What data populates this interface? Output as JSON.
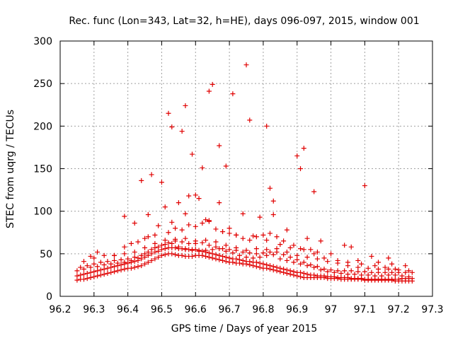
{
  "chart_data": {
    "type": "scatter",
    "title": "Rec. func (Lon=343, Lat=32, h=HE), days 096-097, 2015, window 001",
    "xlabel": "GPS time / Days of year 2015",
    "ylabel": "STEC from uqrg / TECUs",
    "xlim": [
      96.2,
      97.3
    ],
    "ylim": [
      0,
      300
    ],
    "xticks": [
      96.2,
      96.3,
      96.4,
      96.5,
      96.6,
      96.7,
      96.8,
      96.9,
      97,
      97.1,
      97.2,
      97.3
    ],
    "xtick_labels": [
      "96.2",
      "96.3",
      "96.4",
      "96.5",
      "96.6",
      "96.7",
      "96.8",
      "96.9",
      "97",
      "97.1",
      "97.2",
      "97.3"
    ],
    "yticks": [
      0,
      50,
      100,
      150,
      200,
      250,
      300
    ],
    "ytick_labels": [
      "0",
      "50",
      "100",
      "150",
      "200",
      "250",
      "300"
    ],
    "grid": true,
    "marker": "+",
    "color": "#e00000",
    "series": [
      {
        "name": "STEC",
        "x": [
          96.25,
          96.26,
          96.27,
          96.28,
          96.29,
          96.3,
          96.31,
          96.32,
          96.33,
          96.34,
          96.35,
          96.36,
          96.37,
          96.38,
          96.39,
          96.4,
          96.41,
          96.42,
          96.43,
          96.44,
          96.45,
          96.46,
          96.47,
          96.48,
          96.49,
          96.5,
          96.51,
          96.52,
          96.53,
          96.54,
          96.55,
          96.56,
          96.57,
          96.58,
          96.59,
          96.6,
          96.61,
          96.62,
          96.63,
          96.64,
          96.65,
          96.66,
          96.67,
          96.68,
          96.69,
          96.7,
          96.71,
          96.72,
          96.73,
          96.74,
          96.75,
          96.76,
          96.77,
          96.78,
          96.79,
          96.8,
          96.81,
          96.82,
          96.83,
          96.84,
          96.85,
          96.86,
          96.87,
          96.88,
          96.89,
          96.9,
          96.91,
          96.92,
          96.93,
          96.94,
          96.95,
          96.96,
          96.97,
          96.98,
          96.99,
          97.0,
          97.01,
          97.02,
          97.03,
          97.04,
          97.05,
          97.06,
          97.07,
          97.08,
          97.09,
          97.1,
          97.11,
          97.12,
          97.13,
          97.14,
          97.15,
          97.16,
          97.17,
          97.18,
          97.19,
          97.2,
          97.21,
          97.22,
          97.23,
          97.24,
          96.25,
          96.26,
          96.27,
          96.28,
          96.29,
          96.3,
          96.31,
          96.32,
          96.33,
          96.34,
          96.35,
          96.36,
          96.37,
          96.38,
          96.39,
          96.4,
          96.41,
          96.42,
          96.43,
          96.44,
          96.45,
          96.46,
          96.47,
          96.48,
          96.49,
          96.5,
          96.51,
          96.52,
          96.53,
          96.54,
          96.55,
          96.56,
          96.57,
          96.58,
          96.59,
          96.6,
          96.61,
          96.62,
          96.63,
          96.64,
          96.65,
          96.66,
          96.67,
          96.68,
          96.69,
          96.7,
          96.71,
          96.72,
          96.73,
          96.74,
          96.75,
          96.76,
          96.77,
          96.78,
          96.79,
          96.8,
          96.81,
          96.82,
          96.83,
          96.84,
          96.85,
          96.86,
          96.87,
          96.88,
          96.89,
          96.9,
          96.91,
          96.92,
          96.93,
          96.94,
          96.95,
          96.96,
          96.97,
          96.98,
          96.99,
          97.0,
          97.01,
          97.02,
          97.03,
          97.04,
          97.05,
          97.06,
          97.07,
          97.08,
          97.09,
          97.1,
          97.11,
          97.12,
          97.13,
          97.14,
          97.15,
          97.16,
          97.17,
          97.18,
          97.19,
          97.2,
          97.21,
          97.22,
          97.23,
          97.24,
          96.25,
          96.27,
          96.29,
          96.31,
          96.33,
          96.35,
          96.37,
          96.39,
          96.41,
          96.43,
          96.45,
          96.47,
          96.49,
          96.51,
          96.53,
          96.55,
          96.57,
          96.59,
          96.61,
          96.63,
          96.65,
          96.67,
          96.69,
          96.71,
          96.73,
          96.75,
          96.77,
          96.79,
          96.81,
          96.83,
          96.85,
          96.87,
          96.89,
          96.91,
          96.93,
          96.95,
          96.97,
          96.99,
          97.01,
          97.03,
          97.05,
          97.07,
          97.09,
          97.11,
          97.13,
          97.15,
          97.17,
          97.19,
          97.21,
          97.23,
          96.26,
          96.28,
          96.3,
          96.32,
          96.34,
          96.36,
          96.38,
          96.4,
          96.42,
          96.44,
          96.46,
          96.48,
          96.5,
          96.52,
          96.54,
          96.56,
          96.58,
          96.6,
          96.62,
          96.64,
          96.66,
          96.68,
          96.7,
          96.72,
          96.74,
          96.76,
          96.78,
          96.8,
          96.82,
          96.84,
          96.86,
          96.88,
          96.9,
          96.92,
          96.94,
          96.96,
          96.98,
          97.0,
          97.02,
          97.04,
          97.06,
          97.08,
          97.1,
          97.12,
          97.14,
          97.16,
          97.18,
          97.2,
          97.22,
          97.24,
          96.27,
          96.3,
          96.33,
          96.36,
          96.39,
          96.42,
          96.45,
          96.48,
          96.51,
          96.54,
          96.57,
          96.6,
          96.63,
          96.66,
          96.69,
          96.72,
          96.75,
          96.78,
          96.81,
          96.84,
          96.87,
          96.9,
          96.93,
          96.96,
          96.99,
          97.02,
          97.05,
          97.08,
          97.11,
          97.14,
          97.17,
          97.2,
          97.23,
          96.29,
          96.31,
          96.36,
          96.39,
          96.41,
          96.43,
          96.45,
          96.46,
          96.48,
          96.52,
          96.54,
          96.56,
          96.58,
          96.6,
          96.62,
          96.64,
          96.66,
          96.68,
          96.7,
          96.72,
          96.74,
          96.76,
          96.78,
          96.8,
          96.82,
          96.84,
          96.86,
          96.89,
          96.92,
          96.95,
          96.98,
          97.02,
          97.05,
          97.09,
          97.13,
          97.16,
          97.19,
          96.39,
          96.44,
          96.47,
          96.5,
          96.52,
          96.53,
          96.56,
          96.57,
          96.59,
          96.6,
          96.62,
          96.64,
          96.65,
          96.67,
          96.69,
          96.71,
          96.75,
          96.76,
          96.81,
          96.82,
          96.83,
          96.9,
          96.91,
          96.92,
          96.95,
          97.1,
          96.42,
          96.46,
          96.51,
          96.55,
          96.58,
          96.61,
          96.63,
          96.67,
          96.7,
          96.74,
          96.79,
          96.83,
          96.87,
          96.93,
          96.97,
          97.04,
          97.06,
          97.12,
          97.17,
          96.49,
          96.53,
          96.57,
          96.64,
          96.68,
          96.72,
          96.77,
          96.81,
          96.85,
          96.88,
          96.91,
          96.94,
          96.96,
          97.0,
          97.08,
          97.14,
          97.18,
          97.22
        ],
        "y": [
          19,
          20,
          20,
          21,
          22,
          23,
          24,
          25,
          26,
          27,
          28,
          29,
          30,
          31,
          32,
          33,
          33,
          34,
          35,
          36,
          38,
          40,
          42,
          44,
          46,
          48,
          49,
          50,
          50,
          49,
          48,
          48,
          47,
          47,
          47,
          48,
          48,
          48,
          47,
          46,
          45,
          44,
          43,
          42,
          41,
          40,
          40,
          39,
          39,
          38,
          38,
          37,
          36,
          35,
          34,
          33,
          33,
          32,
          31,
          30,
          29,
          28,
          27,
          26,
          25,
          24,
          23,
          22,
          22,
          22,
          22,
          22,
          22,
          22,
          21,
          21,
          21,
          21,
          20,
          20,
          20,
          20,
          20,
          20,
          20,
          19,
          19,
          19,
          19,
          19,
          19,
          19,
          19,
          19,
          18,
          18,
          18,
          18,
          18,
          18,
          24,
          25,
          26,
          27,
          28,
          29,
          30,
          31,
          32,
          33,
          34,
          35,
          36,
          37,
          38,
          39,
          40,
          41,
          42,
          44,
          46,
          48,
          50,
          52,
          53,
          55,
          56,
          57,
          57,
          57,
          56,
          56,
          56,
          55,
          55,
          55,
          54,
          53,
          52,
          51,
          50,
          49,
          48,
          47,
          46,
          45,
          44,
          44,
          43,
          42,
          41,
          41,
          40,
          40,
          39,
          38,
          37,
          36,
          35,
          34,
          33,
          32,
          31,
          30,
          29,
          28,
          28,
          27,
          26,
          25,
          25,
          24,
          24,
          24,
          23,
          23,
          23,
          22,
          22,
          22,
          22,
          21,
          21,
          21,
          21,
          20,
          20,
          20,
          20,
          20,
          20,
          20,
          20,
          20,
          20,
          20,
          21,
          21,
          21,
          21,
          30,
          32,
          34,
          35,
          37,
          38,
          39,
          40,
          42,
          45,
          50,
          55,
          58,
          61,
          62,
          58,
          55,
          54,
          53,
          54,
          55,
          56,
          53,
          51,
          48,
          46,
          45,
          46,
          48,
          49,
          44,
          42,
          40,
          38,
          36,
          34,
          31,
          29,
          28,
          27,
          26,
          26,
          25,
          25,
          24,
          24,
          25,
          25,
          24,
          23,
          34,
          36,
          38,
          40,
          41,
          42,
          43,
          44,
          46,
          48,
          52,
          57,
          60,
          63,
          65,
          64,
          62,
          62,
          63,
          60,
          58,
          56,
          55,
          54,
          52,
          51,
          50,
          51,
          52,
          52,
          49,
          46,
          43,
          40,
          37,
          35,
          32,
          31,
          30,
          30,
          30,
          29,
          29,
          28,
          28,
          28,
          28,
          28,
          28,
          28,
          41,
          45,
          48,
          48,
          50,
          52,
          57,
          62,
          66,
          67,
          68,
          65,
          66,
          64,
          60,
          57,
          54,
          56,
          55,
          56,
          52,
          48,
          46,
          44,
          41,
          39,
          36,
          34,
          33,
          32,
          32,
          31,
          30,
          47,
          52,
          48,
          58,
          62,
          64,
          68,
          70,
          72,
          75,
          80,
          78,
          84,
          82,
          86,
          88,
          79,
          76,
          74,
          72,
          68,
          66,
          70,
          72,
          74,
          70,
          65,
          60,
          55,
          50,
          45,
          42,
          40,
          38,
          36,
          34,
          32,
          94,
          136,
          143,
          134,
          215,
          199,
          194,
          224,
          167,
          119,
          151,
          241,
          249,
          177,
          153,
          238,
          272,
          207,
          200,
          127,
          112,
          165,
          150,
          174,
          123,
          130,
          86,
          96,
          105,
          110,
          118,
          115,
          90,
          110,
          80,
          97,
          93,
          96,
          78,
          68,
          65,
          60,
          58,
          47,
          45,
          83,
          87,
          97,
          89,
          76,
          72,
          71,
          66,
          61,
          57,
          56,
          55,
          52,
          50,
          42,
          40,
          38,
          36
        ]
      }
    ]
  }
}
